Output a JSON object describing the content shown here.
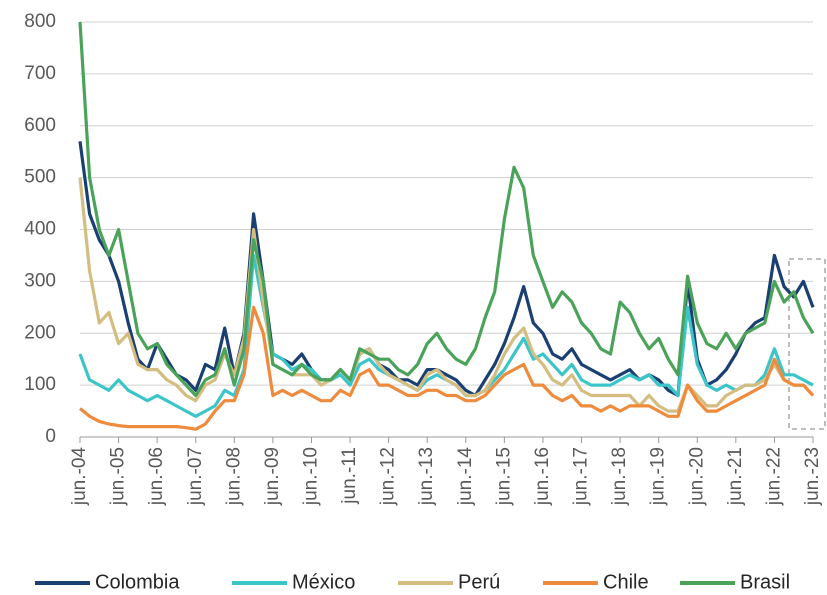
{
  "chart_data": {
    "type": "line",
    "categories": [
      "jun.-04",
      null,
      null,
      null,
      "jun.-05",
      null,
      null,
      null,
      "jun.-06",
      null,
      null,
      null,
      "jun.-07",
      null,
      null,
      null,
      "jun.-08",
      null,
      null,
      null,
      "jun.-09",
      null,
      null,
      null,
      "jun.-10",
      null,
      null,
      null,
      "jun.-11",
      null,
      null,
      null,
      "jun.-12",
      null,
      null,
      null,
      "jun.-13",
      null,
      null,
      null,
      "jun.-14",
      null,
      null,
      null,
      "jun.-15",
      null,
      null,
      null,
      "jun.-16",
      null,
      null,
      null,
      "jun.-17",
      null,
      null,
      null,
      "jun.-18",
      null,
      null,
      null,
      "jun.-19",
      null,
      null,
      null,
      "jun.-20",
      null,
      null,
      null,
      "jun.-21",
      null,
      null,
      null,
      "jun.-22",
      null,
      null,
      null,
      "jun.-23"
    ],
    "series": [
      {
        "name": "Colombia",
        "color": "#1a3f73",
        "values": [
          570,
          430,
          380,
          350,
          300,
          220,
          150,
          130,
          180,
          150,
          120,
          110,
          90,
          140,
          130,
          210,
          120,
          200,
          430,
          300,
          160,
          150,
          140,
          160,
          130,
          110,
          110,
          130,
          110,
          160,
          170,
          140,
          130,
          110,
          110,
          100,
          130,
          130,
          120,
          110,
          90,
          80,
          110,
          140,
          180,
          230,
          290,
          220,
          200,
          160,
          150,
          170,
          140,
          130,
          120,
          110,
          120,
          130,
          110,
          120,
          110,
          90,
          80,
          300,
          150,
          100,
          110,
          130,
          160,
          200,
          220,
          230,
          350,
          290,
          270,
          300,
          250
        ]
      },
      {
        "name": "México",
        "color": "#3cc5c8",
        "values": [
          160,
          110,
          100,
          90,
          110,
          90,
          80,
          70,
          80,
          70,
          60,
          50,
          40,
          50,
          60,
          90,
          80,
          130,
          350,
          250,
          160,
          150,
          130,
          140,
          130,
          110,
          110,
          120,
          100,
          140,
          150,
          130,
          120,
          110,
          100,
          90,
          110,
          120,
          110,
          100,
          80,
          80,
          90,
          110,
          130,
          160,
          190,
          150,
          160,
          140,
          120,
          140,
          110,
          100,
          100,
          100,
          110,
          120,
          110,
          120,
          100,
          100,
          80,
          250,
          140,
          100,
          90,
          100,
          90,
          100,
          100,
          120,
          170,
          120,
          120,
          110,
          100
        ]
      },
      {
        "name": "Perú",
        "color": "#d3bd80",
        "values": [
          500,
          320,
          220,
          240,
          180,
          200,
          140,
          130,
          130,
          110,
          100,
          80,
          70,
          100,
          110,
          160,
          120,
          190,
          400,
          260,
          140,
          130,
          120,
          120,
          120,
          100,
          110,
          130,
          110,
          160,
          170,
          140,
          120,
          110,
          100,
          90,
          120,
          130,
          110,
          100,
          80,
          80,
          90,
          120,
          160,
          190,
          210,
          160,
          140,
          110,
          100,
          120,
          90,
          80,
          80,
          80,
          80,
          80,
          60,
          80,
          60,
          50,
          50,
          100,
          80,
          60,
          60,
          80,
          90,
          100,
          100,
          110,
          140,
          110,
          100,
          100,
          80
        ]
      },
      {
        "name": "Chile",
        "color": "#ee8b3c",
        "values": [
          55,
          40,
          30,
          25,
          22,
          20,
          20,
          20,
          20,
          20,
          20,
          18,
          15,
          25,
          50,
          70,
          70,
          120,
          250,
          200,
          80,
          90,
          80,
          90,
          80,
          70,
          70,
          90,
          80,
          120,
          130,
          100,
          100,
          90,
          80,
          80,
          90,
          90,
          80,
          80,
          70,
          70,
          80,
          100,
          120,
          130,
          140,
          100,
          100,
          80,
          70,
          80,
          60,
          60,
          50,
          60,
          50,
          60,
          60,
          60,
          50,
          40,
          40,
          100,
          70,
          50,
          50,
          60,
          70,
          80,
          90,
          100,
          150,
          110,
          100,
          100,
          80
        ]
      },
      {
        "name": "Brasil",
        "color": "#4ba35a",
        "values": [
          800,
          500,
          400,
          350,
          400,
          300,
          200,
          170,
          180,
          140,
          120,
          100,
          80,
          110,
          120,
          170,
          100,
          170,
          380,
          300,
          140,
          130,
          120,
          140,
          120,
          110,
          110,
          130,
          110,
          170,
          160,
          150,
          150,
          130,
          120,
          140,
          180,
          200,
          170,
          150,
          140,
          170,
          230,
          280,
          420,
          520,
          480,
          350,
          300,
          250,
          280,
          260,
          220,
          200,
          170,
          160,
          260,
          240,
          200,
          170,
          190,
          150,
          120,
          310,
          220,
          180,
          170,
          200,
          170,
          200,
          210,
          220,
          300,
          260,
          280,
          230,
          200
        ]
      }
    ],
    "ylim": [
      0,
      800
    ],
    "yticks": [
      0,
      100,
      200,
      300,
      400,
      500,
      600,
      700,
      800
    ],
    "grid": true,
    "legend": "bottom"
  }
}
